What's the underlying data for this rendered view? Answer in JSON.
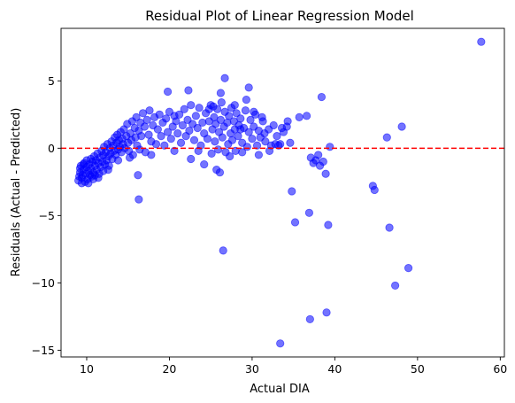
{
  "chart_data": {
    "type": "scatter",
    "title": "Residual Plot of Linear Regression Model",
    "xlabel": "Actual DIA",
    "ylabel": "Residuals (Actual - Predicted)",
    "xlim": [
      6.9,
      60.5
    ],
    "ylim": [
      -15.5,
      8.9
    ],
    "xticks": [
      10,
      20,
      30,
      40,
      50,
      60
    ],
    "yticks": [
      -15,
      -10,
      -5,
      0,
      5
    ],
    "grid": false,
    "point_color": "#0000ff",
    "point_alpha": 0.55,
    "reference_line": {
      "y": 0,
      "color": "#ff0000",
      "style": "dashed"
    },
    "series": [
      {
        "points": [
          [
            9.0,
            -2.4
          ],
          [
            9.1,
            -2.1
          ],
          [
            9.2,
            -1.8
          ],
          [
            9.2,
            -1.5
          ],
          [
            9.3,
            -1.3
          ],
          [
            9.4,
            -2.2
          ],
          [
            9.5,
            -2.0
          ],
          [
            9.6,
            -1.6
          ],
          [
            9.7,
            -1.1
          ],
          [
            9.8,
            -2.5
          ],
          [
            9.9,
            -1.9
          ],
          [
            10.0,
            -1.4
          ],
          [
            10.0,
            -0.9
          ],
          [
            10.1,
            -2.3
          ],
          [
            10.2,
            -1.7
          ],
          [
            10.3,
            -1.2
          ],
          [
            10.4,
            -2.0
          ],
          [
            10.5,
            -0.8
          ],
          [
            10.5,
            -1.5
          ],
          [
            10.6,
            -2.1
          ],
          [
            10.7,
            -1.0
          ],
          [
            10.8,
            -1.8
          ],
          [
            10.9,
            -0.6
          ],
          [
            11.0,
            -1.3
          ],
          [
            11.0,
            -2.0
          ],
          [
            11.1,
            -0.9
          ],
          [
            11.2,
            -1.6
          ],
          [
            11.3,
            -0.4
          ],
          [
            11.4,
            -1.1
          ],
          [
            11.5,
            -1.9
          ],
          [
            11.6,
            -0.7
          ],
          [
            11.7,
            -1.4
          ],
          [
            11.8,
            -0.2
          ],
          [
            11.9,
            -1.0
          ],
          [
            12.0,
            -1.7
          ],
          [
            12.0,
            -0.5
          ],
          [
            12.1,
            0.1
          ],
          [
            12.2,
            -1.2
          ],
          [
            12.3,
            -0.3
          ],
          [
            12.4,
            -0.9
          ],
          [
            12.5,
            0.3
          ],
          [
            12.6,
            -0.6
          ],
          [
            12.7,
            -1.3
          ],
          [
            12.8,
            0.0
          ],
          [
            12.9,
            -0.4
          ],
          [
            13.0,
            0.5
          ],
          [
            13.1,
            -0.8
          ],
          [
            13.2,
            0.2
          ],
          [
            13.3,
            -0.2
          ],
          [
            13.4,
            0.8
          ],
          [
            13.5,
            -0.5
          ],
          [
            13.6,
            0.4
          ],
          [
            13.7,
            1.0
          ],
          [
            13.8,
            -0.1
          ],
          [
            13.9,
            0.6
          ],
          [
            14.0,
            0.1
          ],
          [
            14.1,
            1.2
          ],
          [
            14.2,
            -0.3
          ],
          [
            14.3,
            0.7
          ],
          [
            14.4,
            0.3
          ],
          [
            14.5,
            1.4
          ],
          [
            14.6,
            0.0
          ],
          [
            14.8,
            0.9
          ],
          [
            14.9,
            1.8
          ],
          [
            15.0,
            0.4
          ],
          [
            15.1,
            -0.2
          ],
          [
            15.3,
            1.1
          ],
          [
            15.4,
            0.6
          ],
          [
            15.5,
            2.0
          ],
          [
            15.6,
            -0.5
          ],
          [
            15.8,
            1.5
          ],
          [
            15.9,
            0.8
          ],
          [
            16.0,
            2.3
          ],
          [
            16.1,
            0.2
          ],
          [
            16.3,
            1.3
          ],
          [
            16.4,
            -0.1
          ],
          [
            16.5,
            1.9
          ],
          [
            16.6,
            0.9
          ],
          [
            16.8,
            2.6
          ],
          [
            17.0,
            1.6
          ],
          [
            17.1,
            -0.3
          ],
          [
            17.3,
            2.1
          ],
          [
            17.5,
            1.0
          ],
          [
            17.6,
            2.8
          ],
          [
            17.8,
            0.5
          ],
          [
            18.0,
            1.7
          ],
          [
            18.2,
            2.3
          ],
          [
            18.4,
            0.3
          ],
          [
            18.6,
            1.4
          ],
          [
            18.8,
            2.5
          ],
          [
            19.0,
            0.9
          ],
          [
            19.2,
            1.9
          ],
          [
            19.4,
            0.2
          ],
          [
            19.6,
            2.2
          ],
          [
            19.8,
            1.2
          ],
          [
            20.0,
            2.7
          ],
          [
            20.2,
            0.7
          ],
          [
            20.4,
            1.6
          ],
          [
            20.6,
            -0.2
          ],
          [
            20.8,
            2.0
          ],
          [
            21.0,
            1.1
          ],
          [
            21.2,
            2.5
          ],
          [
            21.4,
            0.4
          ],
          [
            21.6,
            1.7
          ],
          [
            21.8,
            2.9
          ],
          [
            22.0,
            0.9
          ],
          [
            22.2,
            2.1
          ],
          [
            22.4,
            1.3
          ],
          [
            22.6,
            -0.8
          ],
          [
            22.8,
            1.8
          ],
          [
            23.0,
            0.6
          ],
          [
            23.2,
            2.4
          ],
          [
            23.4,
            1.5
          ],
          [
            23.6,
            3.0
          ],
          [
            23.8,
            0.2
          ],
          [
            24.0,
            1.9
          ],
          [
            24.2,
            1.1
          ],
          [
            24.4,
            2.6
          ],
          [
            24.6,
            0.7
          ],
          [
            24.8,
            2.0
          ],
          [
            25.0,
            3.2
          ],
          [
            25.1,
            -0.4
          ],
          [
            25.2,
            1.4
          ],
          [
            25.4,
            2.3
          ],
          [
            25.5,
            0.5
          ],
          [
            25.6,
            1.8
          ],
          [
            25.8,
            2.9
          ],
          [
            25.9,
            -0.1
          ],
          [
            26.0,
            1.2
          ],
          [
            26.2,
            2.1
          ],
          [
            26.3,
            3.4
          ],
          [
            26.4,
            0.8
          ],
          [
            26.6,
            1.6
          ],
          [
            26.7,
            2.7
          ],
          [
            26.8,
            -0.3
          ],
          [
            27.0,
            1.9
          ],
          [
            27.1,
            0.3
          ],
          [
            27.2,
            2.4
          ],
          [
            27.4,
            1.1
          ],
          [
            27.5,
            3.0
          ],
          [
            27.6,
            0.6
          ],
          [
            27.8,
            2.0
          ],
          [
            27.9,
            1.4
          ],
          [
            28.0,
            -0.2
          ],
          [
            28.1,
            2.6
          ],
          [
            28.3,
            0.9
          ],
          [
            28.4,
            1.7
          ],
          [
            28.6,
            2.2
          ],
          [
            28.8,
            0.4
          ],
          [
            29.0,
            1.5
          ],
          [
            29.2,
            2.8
          ],
          [
            29.4,
            0.1
          ],
          [
            29.6,
            1.2
          ],
          [
            29.8,
            2.1
          ],
          [
            30.0,
            0.7
          ],
          [
            30.2,
            1.6
          ],
          [
            30.4,
            2.5
          ],
          [
            30.6,
            0.2
          ],
          [
            30.8,
            1.3
          ],
          [
            31.0,
            0.8
          ],
          [
            31.3,
            2.0
          ],
          [
            31.6,
            0.5
          ],
          [
            32.0,
            1.4
          ],
          [
            32.3,
            0.2
          ],
          [
            32.6,
            1.7
          ],
          [
            33.0,
            0.9
          ],
          [
            33.4,
            0.3
          ],
          [
            33.8,
            1.2
          ],
          [
            34.2,
            1.6
          ],
          [
            34.6,
            0.4
          ],
          [
            9.4,
            -2.6
          ],
          [
            9.6,
            -1.2
          ],
          [
            10.2,
            -2.6
          ],
          [
            10.8,
            -2.3
          ],
          [
            11.4,
            -2.2
          ],
          [
            12.6,
            -1.6
          ],
          [
            13.8,
            -0.9
          ],
          [
            15.2,
            -0.7
          ],
          [
            16.2,
            -2.0
          ],
          [
            16.3,
            -3.8
          ],
          [
            17.8,
            -0.5
          ],
          [
            19.8,
            4.2
          ],
          [
            20.6,
            2.4
          ],
          [
            22.3,
            4.3
          ],
          [
            22.6,
            3.2
          ],
          [
            23.5,
            -0.2
          ],
          [
            24.2,
            -1.2
          ],
          [
            24.8,
            2.9
          ],
          [
            25.3,
            3.1
          ],
          [
            25.7,
            -1.6
          ],
          [
            26.1,
            -1.8
          ],
          [
            26.2,
            4.1
          ],
          [
            26.5,
            -7.6
          ],
          [
            26.7,
            5.2
          ],
          [
            27.3,
            -0.6
          ],
          [
            27.9,
            3.2
          ],
          [
            28.6,
            1.4
          ],
          [
            28.8,
            -0.3
          ],
          [
            29.3,
            3.6
          ],
          [
            29.6,
            4.5
          ],
          [
            30.2,
            2.7
          ],
          [
            30.8,
            -0.5
          ],
          [
            31.2,
            2.3
          ],
          [
            31.5,
            1.1
          ],
          [
            32.1,
            -0.2
          ],
          [
            32.8,
            0.3
          ],
          [
            33.2,
            0.2
          ],
          [
            33.4,
            -14.5
          ],
          [
            33.6,
            1.5
          ],
          [
            34.3,
            2.0
          ],
          [
            34.8,
            -3.2
          ],
          [
            35.2,
            -5.5
          ],
          [
            35.7,
            2.3
          ],
          [
            36.6,
            2.4
          ],
          [
            36.9,
            -4.8
          ],
          [
            37.0,
            -12.7
          ],
          [
            37.1,
            -0.7
          ],
          [
            37.4,
            -1.1
          ],
          [
            37.7,
            -0.9
          ],
          [
            38.0,
            -0.5
          ],
          [
            38.2,
            -1.3
          ],
          [
            38.4,
            3.8
          ],
          [
            38.6,
            -1.0
          ],
          [
            38.9,
            -1.9
          ],
          [
            39.0,
            -12.2
          ],
          [
            39.2,
            -5.7
          ],
          [
            39.4,
            0.1
          ],
          [
            44.6,
            -2.8
          ],
          [
            44.8,
            -3.1
          ],
          [
            46.3,
            0.8
          ],
          [
            46.6,
            -5.9
          ],
          [
            47.3,
            -10.2
          ],
          [
            48.1,
            1.6
          ],
          [
            48.9,
            -8.9
          ],
          [
            57.7,
            7.9
          ]
        ]
      }
    ]
  }
}
